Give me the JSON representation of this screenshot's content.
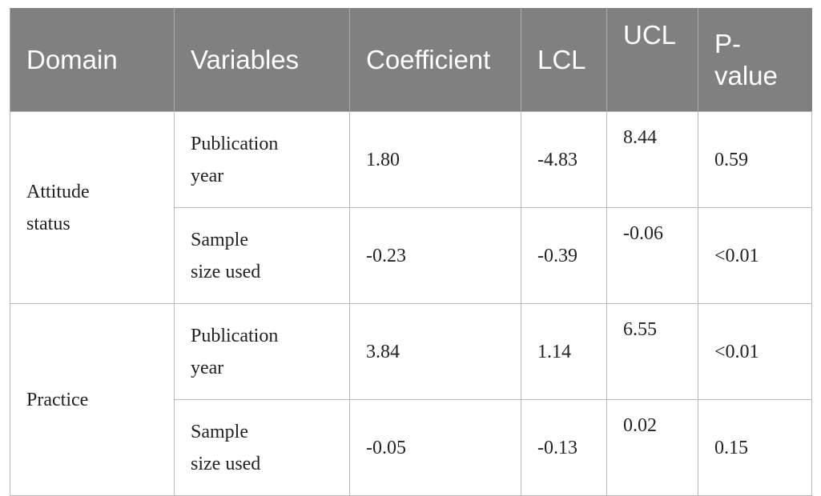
{
  "table": {
    "header": [
      "Domain",
      "Variables",
      "Coefficient",
      "LCL",
      "UCL",
      "P-value"
    ],
    "groups": [
      {
        "domain": "Attitude status",
        "rows": [
          [
            "Publication year",
            "1.80",
            "-4.83",
            "8.44",
            "0.59"
          ],
          [
            "Sample size used",
            "-0.23",
            "-0.39",
            "-0.06",
            "<0.01"
          ]
        ]
      },
      {
        "domain": "Practice",
        "rows": [
          [
            "Publication year",
            "3.84",
            "1.14",
            "6.55",
            "<0.01"
          ],
          [
            "Sample size used",
            "-0.05",
            "-0.13",
            "0.02",
            "0.15"
          ]
        ]
      }
    ]
  }
}
